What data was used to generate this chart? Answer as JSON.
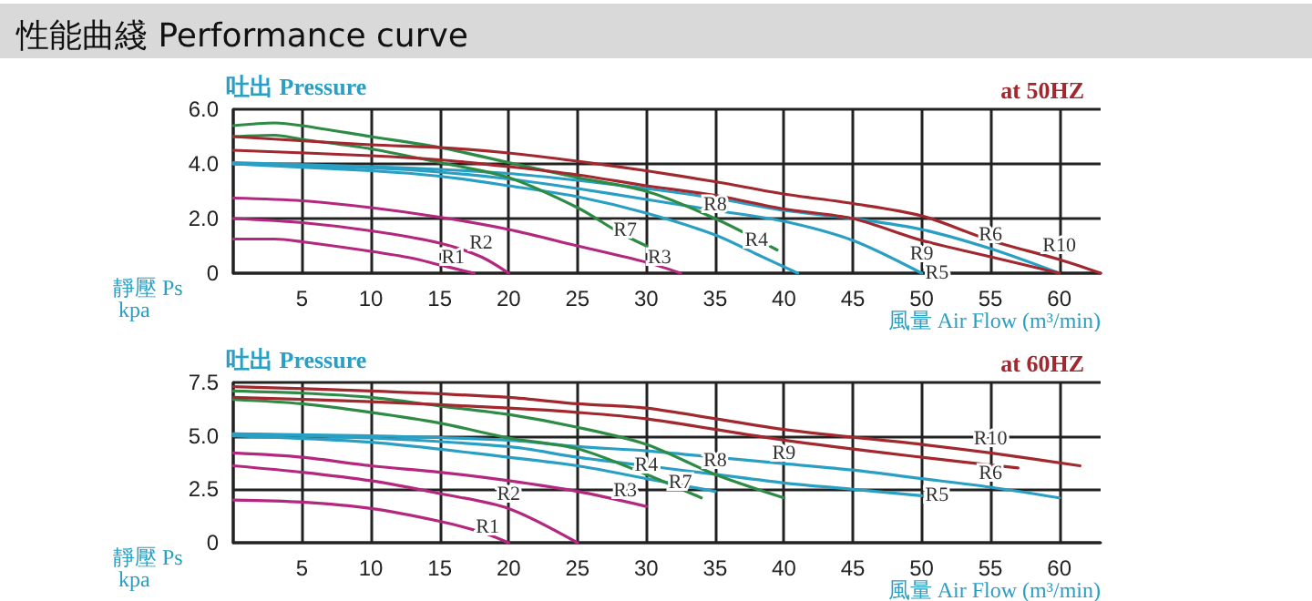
{
  "chart_data": [
    {
      "type": "line",
      "title": "性能曲綫 Performance curve",
      "subtitle": "at 50HZ",
      "ylabel": "吐出 Pressure",
      "xlabel": "風量 Air Flow (m³/min)",
      "annotations": [
        "靜壓 Ps kpa"
      ],
      "xlim": [
        0,
        63
      ],
      "xticks": [
        {
          "value": 0,
          "label": null
        },
        5,
        10,
        15,
        20,
        25,
        30,
        35,
        40,
        45,
        50,
        55,
        60
      ],
      "ylim": [
        0,
        6
      ],
      "yticks": [
        0,
        {
          "value": 2,
          "label": "2.0"
        },
        {
          "value": 4,
          "label": "4.0"
        },
        {
          "value": 6,
          "label": "6.0"
        }
      ],
      "grid": true,
      "legend": false,
      "series": [
        {
          "name": "R1",
          "color": "#b3287e",
          "x": [
            0,
            3,
            5,
            10,
            13,
            15,
            17.5
          ],
          "values": [
            1.25,
            1.25,
            1.15,
            0.8,
            0.55,
            0.3,
            0
          ]
        },
        {
          "name": "R2",
          "color": "#b3287e",
          "x": [
            0,
            5,
            10,
            15,
            18,
            20
          ],
          "values": [
            2.0,
            1.85,
            1.55,
            1.1,
            0.6,
            0
          ]
        },
        {
          "name": "R3",
          "color": "#b3287e",
          "x": [
            0,
            5,
            10,
            15,
            20,
            25,
            30,
            32.5
          ],
          "values": [
            2.75,
            2.65,
            2.4,
            2.05,
            1.6,
            1.0,
            0.4,
            0
          ]
        },
        {
          "name": "R4",
          "color": "#2a9fc4",
          "x": [
            0,
            10,
            15,
            20,
            25,
            30,
            35,
            38,
            41
          ],
          "values": [
            4.0,
            3.75,
            3.55,
            3.2,
            2.8,
            2.2,
            1.4,
            0.7,
            0
          ]
        },
        {
          "name": "R5",
          "color": "#2a9fc4",
          "x": [
            0,
            10,
            15,
            20,
            25,
            30,
            35,
            40,
            45,
            50
          ],
          "values": [
            4.0,
            3.85,
            3.7,
            3.45,
            3.1,
            2.7,
            2.3,
            1.9,
            1.2,
            0
          ]
        },
        {
          "name": "R6",
          "color": "#2a9fc4",
          "x": [
            0,
            10,
            15,
            20,
            25,
            30,
            35,
            40,
            45,
            50,
            55,
            60
          ],
          "values": [
            4.05,
            3.9,
            3.8,
            3.65,
            3.4,
            3.1,
            2.75,
            2.3,
            2.0,
            1.6,
            0.9,
            0
          ]
        },
        {
          "name": "R7",
          "color": "#2e8b45",
          "x": [
            0,
            3,
            5,
            10,
            15,
            20,
            25,
            28,
            30
          ],
          "values": [
            5.0,
            5.05,
            4.9,
            4.55,
            4.05,
            3.5,
            2.4,
            1.5,
            1.0
          ]
        },
        {
          "name": "R8",
          "color": "#2e8b45",
          "x": [
            0,
            3,
            5,
            10,
            15,
            20,
            25,
            30,
            35,
            39.5
          ],
          "values": [
            5.4,
            5.5,
            5.4,
            5.0,
            4.6,
            4.05,
            3.5,
            3.0,
            2.0,
            0.85
          ]
        },
        {
          "name": "R9",
          "color": "#a0282e",
          "x": [
            0,
            10,
            15,
            20,
            25,
            30,
            35,
            40,
            45,
            50,
            55,
            60
          ],
          "values": [
            4.5,
            4.3,
            4.15,
            3.9,
            3.6,
            3.2,
            2.85,
            2.35,
            2.0,
            1.2,
            0.6,
            0
          ]
        },
        {
          "name": "R10",
          "color": "#a0282e",
          "x": [
            0,
            10,
            15,
            20,
            25,
            30,
            35,
            40,
            45,
            50,
            55,
            60,
            63
          ],
          "values": [
            5.0,
            4.7,
            4.6,
            4.4,
            4.1,
            3.75,
            3.35,
            2.9,
            2.55,
            2.1,
            1.2,
            0.5,
            0
          ]
        }
      ]
    },
    {
      "type": "line",
      "subtitle": "at 60HZ",
      "ylabel": "吐出 Pressure",
      "xlabel": "風量 Air Flow (m³/min)",
      "annotations": [
        "靜壓 Ps kpa"
      ],
      "xlim": [
        0,
        63
      ],
      "xticks": [
        {
          "value": 0,
          "label": null
        },
        5,
        10,
        15,
        20,
        25,
        30,
        35,
        40,
        45,
        50,
        55,
        60
      ],
      "ylim": [
        0,
        7.5
      ],
      "yticks": [
        0,
        {
          "value": 2.5,
          "label": "2.5"
        },
        {
          "value": 5,
          "label": "5.0"
        },
        {
          "value": 7.5,
          "label": "7.5"
        }
      ],
      "grid": true,
      "legend": false,
      "series": [
        {
          "name": "R1",
          "color": "#b3287e",
          "x": [
            0,
            5,
            10,
            15,
            18,
            20
          ],
          "values": [
            2.0,
            1.9,
            1.6,
            1.0,
            0.5,
            0
          ]
        },
        {
          "name": "R2",
          "color": "#b3287e",
          "x": [
            0,
            5,
            10,
            15,
            20,
            25
          ],
          "values": [
            3.6,
            3.3,
            2.9,
            2.3,
            1.6,
            0
          ]
        },
        {
          "name": "R3",
          "color": "#b3287e",
          "x": [
            0,
            5,
            10,
            15,
            20,
            25,
            30
          ],
          "values": [
            4.2,
            4.0,
            3.6,
            3.3,
            2.9,
            2.4,
            1.7
          ]
        },
        {
          "name": "R4",
          "color": "#2a9fc4",
          "x": [
            0,
            10,
            20,
            25,
            30,
            35
          ],
          "values": [
            5.0,
            4.7,
            4.0,
            3.6,
            3.0,
            2.4
          ]
        },
        {
          "name": "R5",
          "color": "#2a9fc4",
          "x": [
            0,
            10,
            20,
            25,
            30,
            35,
            40,
            45,
            50
          ],
          "values": [
            5.1,
            4.9,
            4.5,
            4.0,
            3.6,
            3.2,
            2.8,
            2.5,
            2.2
          ]
        },
        {
          "name": "R6",
          "color": "#2a9fc4",
          "x": [
            0,
            10,
            20,
            25,
            30,
            35,
            40,
            45,
            50,
            55,
            60
          ],
          "values": [
            5.1,
            5.0,
            4.8,
            4.5,
            4.3,
            4.0,
            3.7,
            3.4,
            3.0,
            2.6,
            2.1
          ]
        },
        {
          "name": "R7",
          "color": "#2e8b45",
          "x": [
            0,
            5,
            10,
            15,
            20,
            25,
            30,
            34
          ],
          "values": [
            6.7,
            6.5,
            6.1,
            5.6,
            4.9,
            4.4,
            3.2,
            2.1
          ]
        },
        {
          "name": "R8",
          "color": "#2e8b45",
          "x": [
            0,
            5,
            10,
            15,
            20,
            25,
            30,
            35,
            40
          ],
          "values": [
            7.1,
            7.0,
            6.8,
            6.4,
            6.0,
            5.4,
            4.6,
            3.2,
            2.1
          ]
        },
        {
          "name": "R9",
          "color": "#a0282e",
          "x": [
            0,
            10,
            20,
            25,
            30,
            40,
            50,
            57
          ],
          "values": [
            6.8,
            6.6,
            6.3,
            6.1,
            5.8,
            4.8,
            4.0,
            3.5
          ]
        },
        {
          "name": "R10",
          "color": "#a0282e",
          "x": [
            0,
            10,
            20,
            25,
            30,
            40,
            50,
            55,
            61.5
          ],
          "values": [
            7.3,
            7.1,
            6.8,
            6.5,
            6.3,
            5.3,
            4.6,
            4.2,
            3.6
          ]
        }
      ]
    }
  ]
}
